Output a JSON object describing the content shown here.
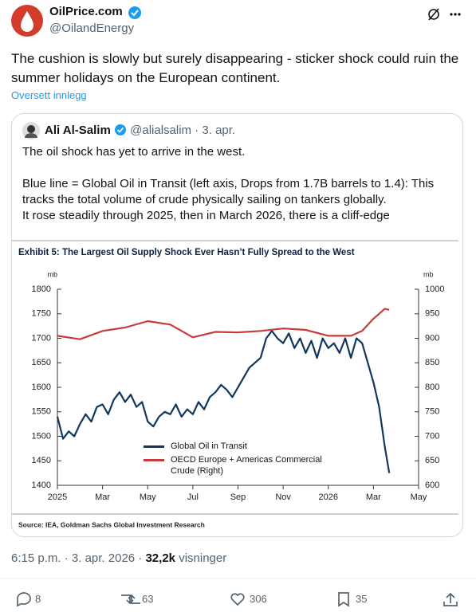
{
  "post": {
    "author": "OilPrice.com",
    "handle": "@OilandEnergy",
    "text": "The cushion is slowly but surely disappearing - sticker shock could ruin the summer holidays on the European continent.",
    "translate": "Oversett innlegg"
  },
  "quote": {
    "author": "Ali Al-Salim",
    "handle": "@alialsalim",
    "sep": "·",
    "date": "3. apr.",
    "lines": [
      "The oil shock has yet to arrive in the west.",
      "Blue line = Global Oil in Transit (left axis, Drops from 1.7B barrels to 1.4): This tracks the total volume of crude physically sailing on tankers globally.",
      "It rose steadily through 2025, then in March 2026, there is a cliff-edge"
    ]
  },
  "chart_data": {
    "type": "line",
    "title": "Exhibit 5: The Largest Oil Supply Shock Ever Hasn’t Fully Spread to the West",
    "source": "Source: IEA, Goldman Sachs Global Investment Research",
    "y_unit": "mb",
    "y2_unit": "mb",
    "xlim": [
      0,
      16
    ],
    "xticks": [
      {
        "value": 0,
        "label": "2025"
      },
      {
        "value": 2,
        "label": "Mar"
      },
      {
        "value": 4,
        "label": "May"
      },
      {
        "value": 6,
        "label": "Jul"
      },
      {
        "value": 8,
        "label": "Sep"
      },
      {
        "value": 10,
        "label": "Nov"
      },
      {
        "value": 12,
        "label": "2026"
      },
      {
        "value": 14,
        "label": "Mar"
      },
      {
        "value": 16,
        "label": "May"
      }
    ],
    "ylim": [
      1400,
      1800
    ],
    "yticks": [
      1400,
      1450,
      1500,
      1550,
      1600,
      1650,
      1700,
      1750,
      1800
    ],
    "y2lim": [
      600,
      1000
    ],
    "y2ticks": [
      600,
      650,
      700,
      750,
      800,
      850,
      900,
      950,
      1000
    ],
    "series": [
      {
        "name": "Global Oil in Transit",
        "color": "#12375e",
        "x": [
          0,
          0.25,
          0.5,
          0.75,
          1,
          1.25,
          1.5,
          1.75,
          2,
          2.25,
          2.5,
          2.75,
          3,
          3.25,
          3.5,
          3.75,
          4,
          4.25,
          4.5,
          4.75,
          5,
          5.25,
          5.5,
          5.75,
          6,
          6.25,
          6.5,
          6.75,
          7,
          7.25,
          7.5,
          7.75,
          8,
          8.25,
          8.5,
          8.75,
          9,
          9.25,
          9.5,
          9.75,
          10,
          10.25,
          10.5,
          10.75,
          11,
          11.25,
          11.5,
          11.75,
          12,
          12.25,
          12.5,
          12.75,
          13,
          13.25,
          13.5,
          13.75,
          14,
          14.25,
          14.5,
          14.7
        ],
        "values": [
          1540,
          1495,
          1510,
          1500,
          1525,
          1545,
          1530,
          1560,
          1565,
          1545,
          1575,
          1590,
          1570,
          1585,
          1560,
          1570,
          1530,
          1520,
          1540,
          1550,
          1545,
          1565,
          1540,
          1555,
          1545,
          1570,
          1555,
          1580,
          1590,
          1605,
          1595,
          1580,
          1600,
          1620,
          1640,
          1650,
          1660,
          1700,
          1715,
          1700,
          1690,
          1710,
          1680,
          1700,
          1670,
          1695,
          1660,
          1700,
          1680,
          1690,
          1670,
          1700,
          1660,
          1700,
          1690,
          1650,
          1610,
          1560,
          1480,
          1425
        ]
      },
      {
        "name": "OECD Europe + Americas Commercial Crude (Right)",
        "color": "#c93a3c",
        "axis": "y2",
        "x": [
          0,
          1,
          2,
          3,
          4,
          5,
          6,
          7,
          8,
          9,
          10,
          11,
          12,
          13,
          13.5,
          14,
          14.25,
          14.5,
          14.7
        ],
        "values": [
          905,
          898,
          915,
          922,
          935,
          928,
          902,
          913,
          912,
          915,
          920,
          917,
          905,
          905,
          915,
          940,
          950,
          960,
          958
        ]
      }
    ]
  },
  "meta": {
    "time": "6:15 p.m.",
    "sep": "·",
    "date": "3. apr. 2026",
    "views": "32,2k",
    "views_label": "visninger"
  },
  "actions": {
    "replies": 8,
    "reposts": 63,
    "likes": 306,
    "bookmarks": 35
  }
}
